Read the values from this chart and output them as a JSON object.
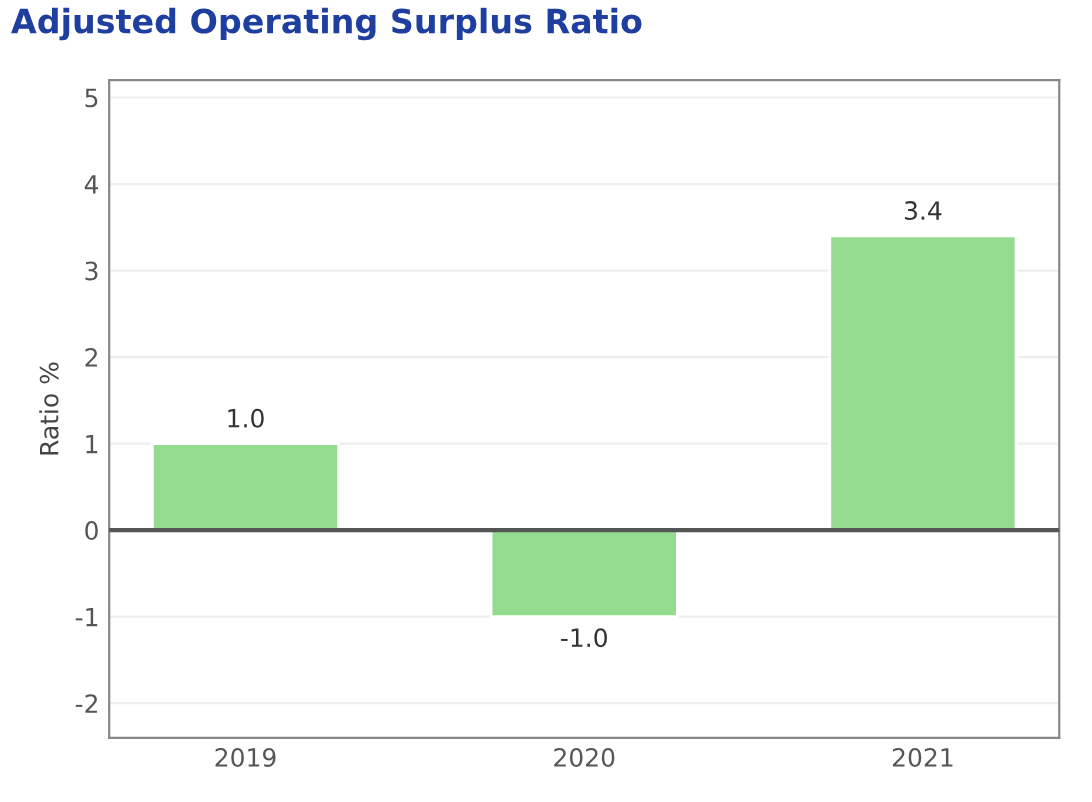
{
  "chart_data": {
    "type": "bar",
    "title": "Adjusted Operating Surplus Ratio",
    "ylabel": "Ratio %",
    "categories": [
      "2019",
      "2020",
      "2021"
    ],
    "values": [
      1.0,
      -1.0,
      3.4
    ],
    "value_labels": [
      "1.0",
      "-1.0",
      "3.4"
    ],
    "color": "#93dc8f",
    "ylim": [
      -2.4,
      5.2
    ],
    "yticks": [
      -2,
      -1,
      0,
      1,
      2,
      3,
      4,
      5
    ],
    "grid": "y",
    "ref_lines": [
      {
        "axis": "y",
        "value": 0,
        "color": "#555555"
      }
    ]
  }
}
